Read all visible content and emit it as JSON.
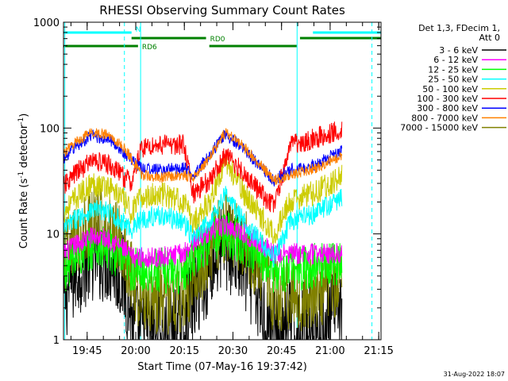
{
  "chart_data": {
    "type": "line",
    "title": "RHESSI Observing Summary Count Rates",
    "xlabel": "Start Time (07-May-16 19:37:42)",
    "ylabel_main": "Count Rate (s",
    "ylabel_sup1": "-1",
    "ylabel_mid": " detector",
    "ylabel_sup2": "-1",
    "ylabel_end": ")",
    "ylog": true,
    "ylim": [
      1,
      1000
    ],
    "xlim_minutes": [
      0,
      98
    ],
    "x_tick_minutes": [
      7.3,
      22.3,
      37.3,
      52.3,
      67.3,
      82.3,
      97.3
    ],
    "x_tick_labels": [
      "19:45",
      "20:00",
      "20:15",
      "20:30",
      "20:45",
      "21:00",
      "21:15"
    ],
    "y_ticks": [
      1,
      10,
      100,
      1000
    ],
    "y_tick_labels": [
      "1",
      "10",
      "100",
      "1000"
    ],
    "legend_header": [
      "Det 1,3, FDecim 1,",
      "Att 0"
    ],
    "series": [
      {
        "name": "3 - 6 keV",
        "color": "#000000",
        "x": [
          0,
          4,
          9,
          14,
          18,
          20,
          21,
          23,
          30,
          37,
          40,
          45,
          50,
          54,
          58,
          61,
          65,
          68,
          70,
          72,
          76,
          80,
          84,
          86
        ],
        "y": [
          2.5,
          4.5,
          6.5,
          6.0,
          4.0,
          2.5,
          1.6,
          1.2,
          1.2,
          1.2,
          2.5,
          5.0,
          8.0,
          6.0,
          3.5,
          2.0,
          1.2,
          1.2,
          1.6,
          1.2,
          1.3,
          1.3,
          1.7,
          2.2
        ]
      },
      {
        "name": "6 - 12 keV",
        "color": "#ff00ff",
        "x": [
          0,
          4,
          9,
          14,
          18,
          21,
          30,
          37,
          40,
          45,
          50,
          55,
          60,
          65,
          70,
          78,
          86
        ],
        "y": [
          6.5,
          8.0,
          9.5,
          9.0,
          7.5,
          6.0,
          6.0,
          6.5,
          8.5,
          10.5,
          12.0,
          10.5,
          8.5,
          6.5,
          6.5,
          6.5,
          6.5
        ]
      },
      {
        "name": "12 - 25 keV",
        "color": "#00ff00",
        "x": [
          0,
          4,
          9,
          14,
          18,
          21,
          30,
          37,
          40,
          45,
          50,
          55,
          60,
          65,
          70,
          78,
          86
        ],
        "y": [
          4.5,
          6.0,
          7.5,
          7.0,
          5.5,
          4.5,
          4.5,
          4.5,
          6.5,
          8.5,
          10.0,
          8.5,
          6.5,
          4.5,
          4.5,
          5.0,
          5.5
        ]
      },
      {
        "name": "25 - 50 keV",
        "color": "#00ffff",
        "x": [
          0,
          4,
          9,
          14,
          18,
          21,
          24,
          30,
          37,
          40,
          45,
          50,
          55,
          60,
          65,
          70,
          78,
          86
        ],
        "y": [
          11,
          14,
          17,
          16,
          13,
          11,
          14,
          15,
          13,
          9,
          13,
          24,
          14,
          9,
          6,
          13,
          16,
          22
        ]
      },
      {
        "name": "50 - 100 keV",
        "color": "#cccc00",
        "x": [
          0,
          4,
          9,
          14,
          18,
          21,
          24,
          30,
          37,
          40,
          45,
          50,
          55,
          60,
          65,
          70,
          78,
          86
        ],
        "y": [
          16,
          22,
          30,
          28,
          22,
          16,
          22,
          24,
          20,
          13,
          20,
          50,
          26,
          16,
          10,
          20,
          25,
          35
        ]
      },
      {
        "name": "100 - 300 keV",
        "color": "#ff0000",
        "x": [
          0,
          4,
          9,
          14,
          18,
          21,
          24,
          30,
          37,
          40,
          45,
          50,
          55,
          60,
          65,
          70,
          78,
          86
        ],
        "y": [
          28,
          38,
          50,
          45,
          36,
          30,
          65,
          70,
          70,
          24,
          32,
          55,
          40,
          26,
          18,
          70,
          80,
          100
        ]
      },
      {
        "name": "300 - 800 keV",
        "color": "#0000ff",
        "x": [
          0,
          4,
          9,
          14,
          18,
          21,
          24,
          30,
          37,
          40,
          45,
          50,
          55,
          60,
          65,
          70,
          78,
          86
        ],
        "y": [
          52,
          68,
          85,
          78,
          62,
          50,
          42,
          40,
          42,
          36,
          55,
          88,
          66,
          46,
          32,
          40,
          45,
          62
        ]
      },
      {
        "name": "800 - 7000 keV",
        "color": "#ff8000",
        "x": [
          0,
          4,
          9,
          14,
          18,
          21,
          24,
          30,
          37,
          40,
          45,
          50,
          55,
          60,
          65,
          70,
          78,
          86
        ],
        "y": [
          58,
          75,
          92,
          85,
          68,
          52,
          36,
          34,
          36,
          34,
          52,
          92,
          70,
          48,
          32,
          36,
          42,
          55
        ]
      },
      {
        "name": "7000 - 15000 keV",
        "color": "#808000",
        "x": [
          0,
          4,
          9,
          14,
          18,
          21,
          24,
          30,
          37,
          40,
          45,
          50,
          55,
          60,
          65,
          70,
          78,
          86
        ],
        "y": [
          6.0,
          9.0,
          13.0,
          12.0,
          9.0,
          4.0,
          2.5,
          2.5,
          2.5,
          3.5,
          7.0,
          12.0,
          9.0,
          5.0,
          2.5,
          2.5,
          2.8,
          4.0
        ]
      }
    ],
    "flags": [
      {
        "label": "N",
        "color": "#00ffff",
        "segments": [
          [
            0,
            21
          ],
          [
            77,
            98
          ]
        ],
        "level": 0
      },
      {
        "label": "RD0",
        "color": "#008000",
        "segments": [
          [
            21,
            44
          ],
          [
            73,
            98
          ]
        ],
        "level": 1
      },
      {
        "label": "RD6",
        "color": "#008000",
        "segments": [
          [
            0,
            23
          ],
          [
            45,
            72
          ]
        ],
        "level": 2
      }
    ],
    "solid_vlines_minutes": [
      0.4,
      23.8,
      72.1
    ],
    "dashed_vlines_minutes": [
      18.8,
      95.2
    ],
    "vline_color": "#00ffff"
  },
  "timestamp": "31-Aug-2022 18:07"
}
